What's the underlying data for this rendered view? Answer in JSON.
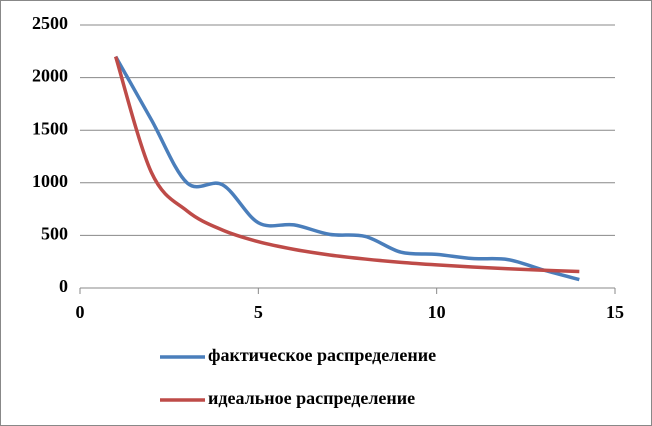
{
  "chart_data": {
    "type": "line",
    "x": [
      1,
      2,
      3,
      4,
      5,
      6,
      7,
      8,
      9,
      10,
      11,
      12,
      13,
      14
    ],
    "series": [
      {
        "name": "фактическое распределение",
        "color": "#4a7ebb",
        "values": [
          2200,
          1600,
          1000,
          980,
          620,
          600,
          510,
          490,
          340,
          320,
          280,
          270,
          170,
          80
        ]
      },
      {
        "name": "идеальное распределение",
        "color": "#be4b48",
        "values": [
          2200,
          1100,
          733,
          550,
          440,
          367,
          314,
          275,
          244,
          220,
          200,
          183,
          169,
          157
        ]
      }
    ],
    "xlim": [
      0,
      15
    ],
    "xticks": [
      0,
      5,
      10,
      15
    ],
    "ylim": [
      0,
      2500
    ],
    "yticks": [
      0,
      500,
      1000,
      1500,
      2000,
      2500
    ],
    "grid": true,
    "smooth": true,
    "legend": "bottom"
  }
}
